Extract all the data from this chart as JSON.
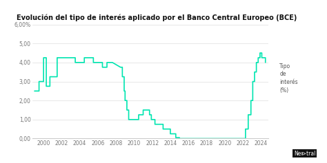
{
  "title": "Evolución del tipo de interés aplicado por el Banco Central Europeo (BCE)",
  "line_color": "#00e5b0",
  "background_color": "#ffffff",
  "legend_label": "Tipo\nde\ninterés\n(%)",
  "ylim": [
    0,
    6.0
  ],
  "yticks": [
    0.0,
    1.0,
    2.0,
    3.0,
    4.0,
    5.0,
    6.0
  ],
  "ytick_labels": [
    "0,00",
    "1,00",
    "2,00",
    "3,00",
    "4,00",
    "5,00",
    "6,00%"
  ],
  "xlim": [
    1998.8,
    2024.8
  ],
  "xtick_years": [
    2000,
    2002,
    2004,
    2006,
    2008,
    2010,
    2012,
    2014,
    2016,
    2018,
    2020,
    2022,
    2024
  ],
  "data": [
    [
      1999.0,
      2.5
    ],
    [
      1999.5,
      2.5
    ],
    [
      1999.5,
      3.0
    ],
    [
      2000.0,
      3.0
    ],
    [
      2000.0,
      4.25
    ],
    [
      2000.3,
      4.25
    ],
    [
      2000.3,
      2.75
    ],
    [
      2000.7,
      2.75
    ],
    [
      2000.7,
      3.25
    ],
    [
      2001.5,
      3.25
    ],
    [
      2001.5,
      4.25
    ],
    [
      2003.5,
      4.25
    ],
    [
      2003.5,
      4.0
    ],
    [
      2004.5,
      4.0
    ],
    [
      2004.5,
      4.25
    ],
    [
      2005.5,
      4.25
    ],
    [
      2005.5,
      4.0
    ],
    [
      2006.5,
      4.0
    ],
    [
      2006.5,
      3.75
    ],
    [
      2007.0,
      3.75
    ],
    [
      2007.0,
      4.0
    ],
    [
      2007.6,
      4.0
    ],
    [
      2008.5,
      3.75
    ],
    [
      2008.7,
      3.75
    ],
    [
      2008.7,
      3.25
    ],
    [
      2008.9,
      3.25
    ],
    [
      2008.9,
      2.5
    ],
    [
      2009.0,
      2.5
    ],
    [
      2009.0,
      2.0
    ],
    [
      2009.2,
      2.0
    ],
    [
      2009.2,
      1.5
    ],
    [
      2009.4,
      1.5
    ],
    [
      2009.4,
      1.0
    ],
    [
      2010.5,
      1.0
    ],
    [
      2010.5,
      1.25
    ],
    [
      2011.0,
      1.25
    ],
    [
      2011.0,
      1.5
    ],
    [
      2011.7,
      1.5
    ],
    [
      2011.7,
      1.25
    ],
    [
      2011.9,
      1.25
    ],
    [
      2011.9,
      1.0
    ],
    [
      2012.3,
      1.0
    ],
    [
      2012.3,
      0.75
    ],
    [
      2013.2,
      0.75
    ],
    [
      2013.2,
      0.5
    ],
    [
      2014.0,
      0.5
    ],
    [
      2014.0,
      0.25
    ],
    [
      2014.6,
      0.25
    ],
    [
      2014.6,
      0.05
    ],
    [
      2015.0,
      0.05
    ],
    [
      2015.0,
      0.0
    ],
    [
      2022.3,
      0.0
    ],
    [
      2022.3,
      0.5
    ],
    [
      2022.6,
      0.5
    ],
    [
      2022.6,
      1.25
    ],
    [
      2022.9,
      1.25
    ],
    [
      2022.9,
      2.0
    ],
    [
      2023.1,
      2.0
    ],
    [
      2023.1,
      3.0
    ],
    [
      2023.3,
      3.0
    ],
    [
      2023.3,
      3.5
    ],
    [
      2023.5,
      3.5
    ],
    [
      2023.5,
      4.0
    ],
    [
      2023.7,
      4.0
    ],
    [
      2023.7,
      4.25
    ],
    [
      2023.9,
      4.25
    ],
    [
      2023.9,
      4.5
    ],
    [
      2024.1,
      4.5
    ],
    [
      2024.1,
      4.25
    ],
    [
      2024.5,
      4.25
    ],
    [
      2024.5,
      4.0
    ]
  ]
}
